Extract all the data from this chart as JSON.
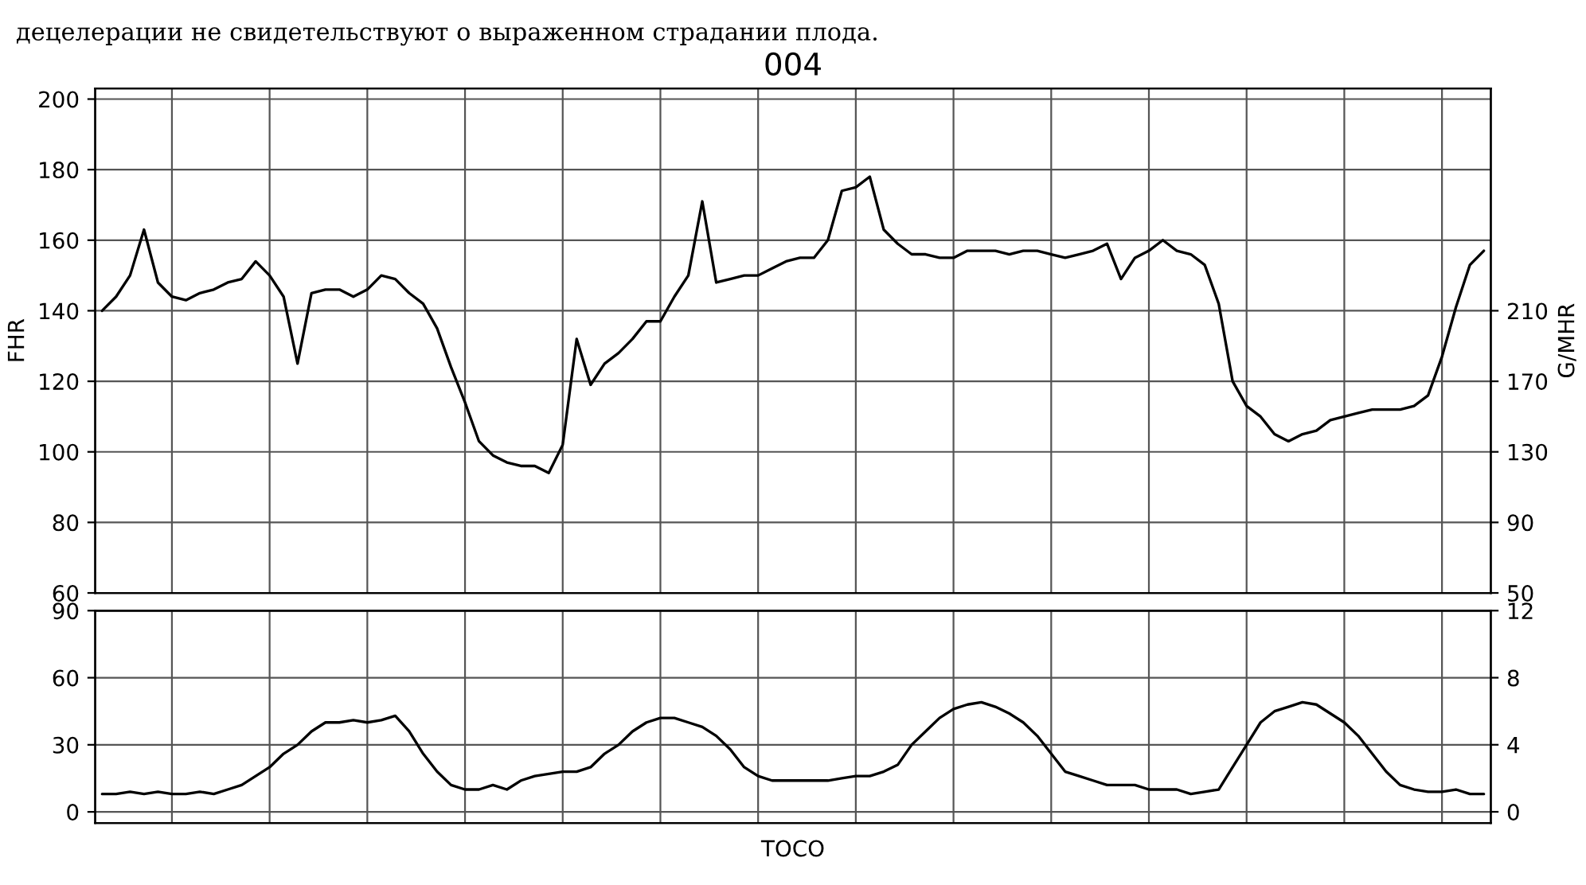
{
  "chart_data": [
    {
      "type": "line",
      "title": "004",
      "ylabel": "FHR",
      "y2label": "G/MHR",
      "annotations": [
        "децелерации не свидетельствуют о выраженном страдании плода."
      ],
      "categories": [
        null,
        null,
        null,
        null,
        null,
        null,
        null,
        null,
        null,
        null,
        null,
        null,
        null,
        null,
        null,
        null,
        null,
        null,
        null,
        null,
        null,
        null,
        null,
        null,
        null,
        null,
        null,
        null,
        null,
        null,
        null,
        null,
        null,
        null,
        null,
        null,
        null,
        null,
        null,
        null,
        null,
        null,
        null,
        null,
        null,
        null,
        null,
        null,
        null,
        null,
        null,
        null,
        null,
        null,
        null,
        null,
        null,
        null,
        null,
        null,
        null,
        null,
        null,
        null,
        null,
        null,
        null,
        null,
        null,
        null,
        null,
        null,
        null,
        null,
        null,
        null,
        null,
        null,
        null,
        null,
        null,
        null,
        null,
        null,
        null,
        null,
        null,
        null,
        null,
        null,
        null,
        null,
        null,
        null,
        null,
        null,
        null,
        null,
        null,
        null
      ],
      "series": [
        {
          "color": "#000000",
          "values": [
            140,
            144,
            150,
            163,
            148,
            144,
            143,
            145,
            146,
            148,
            149,
            154,
            150,
            144,
            125,
            145,
            146,
            146,
            144,
            146,
            150,
            149,
            145,
            142,
            135,
            124,
            114,
            103,
            99,
            97,
            96,
            96,
            94,
            102,
            132,
            119,
            125,
            128,
            132,
            137,
            137,
            144,
            150,
            171,
            148,
            149,
            150,
            150,
            152,
            154,
            155,
            155,
            160,
            174,
            175,
            178,
            163,
            159,
            156,
            156,
            155,
            155,
            157,
            157,
            157,
            156,
            157,
            157,
            156,
            155,
            156,
            157,
            159,
            149,
            155,
            157,
            160,
            157,
            156,
            153,
            142,
            120,
            113,
            110,
            105,
            103,
            105,
            106,
            109,
            110,
            111,
            112,
            112,
            112,
            113,
            116,
            127,
            141,
            153,
            157
          ]
        }
      ],
      "ylim": [
        60,
        203
      ],
      "yticks": [
        60,
        80,
        100,
        120,
        140,
        160,
        180,
        200
      ],
      "y2lim": [
        50,
        336
      ],
      "y2ticks": [
        50,
        90,
        130,
        170,
        210
      ],
      "grid": true,
      "line_style": "solid",
      "marker": "none"
    },
    {
      "type": "line",
      "xlabel": "TOCO",
      "categories": [
        null,
        null,
        null,
        null,
        null,
        null,
        null,
        null,
        null,
        null,
        null,
        null,
        null,
        null,
        null,
        null,
        null,
        null,
        null,
        null,
        null,
        null,
        null,
        null,
        null,
        null,
        null,
        null,
        null,
        null,
        null,
        null,
        null,
        null,
        null,
        null,
        null,
        null,
        null,
        null,
        null,
        null,
        null,
        null,
        null,
        null,
        null,
        null,
        null,
        null,
        null,
        null,
        null,
        null,
        null,
        null,
        null,
        null,
        null,
        null,
        null,
        null,
        null,
        null,
        null,
        null,
        null,
        null,
        null,
        null,
        null,
        null,
        null,
        null,
        null,
        null,
        null,
        null,
        null,
        null,
        null,
        null,
        null,
        null,
        null,
        null,
        null,
        null,
        null,
        null,
        null,
        null,
        null,
        null,
        null,
        null,
        null,
        null,
        null,
        null
      ],
      "series": [
        {
          "color": "#000000",
          "values": [
            8,
            8,
            9,
            8,
            9,
            8,
            8,
            9,
            8,
            10,
            12,
            16,
            20,
            26,
            30,
            36,
            40,
            40,
            41,
            40,
            41,
            43,
            36,
            26,
            18,
            12,
            10,
            10,
            12,
            10,
            14,
            16,
            17,
            18,
            18,
            20,
            26,
            30,
            36,
            40,
            42,
            42,
            40,
            38,
            34,
            28,
            20,
            16,
            14,
            14,
            14,
            14,
            14,
            15,
            16,
            16,
            18,
            21,
            30,
            36,
            42,
            46,
            48,
            49,
            47,
            44,
            40,
            34,
            26,
            18,
            16,
            14,
            12,
            12,
            12,
            10,
            10,
            10,
            8,
            9,
            10,
            20,
            30,
            40,
            45,
            47,
            49,
            48,
            44,
            40,
            34,
            26,
            18,
            12,
            10,
            9,
            9,
            10,
            8,
            8
          ]
        }
      ],
      "ylim": [
        -5,
        90
      ],
      "yticks": [
        0,
        30,
        60,
        90
      ],
      "y2lim": [
        -0.67,
        12
      ],
      "y2ticks": [
        0,
        4,
        8,
        12
      ],
      "grid": true,
      "line_style": "solid",
      "marker": "none"
    }
  ]
}
